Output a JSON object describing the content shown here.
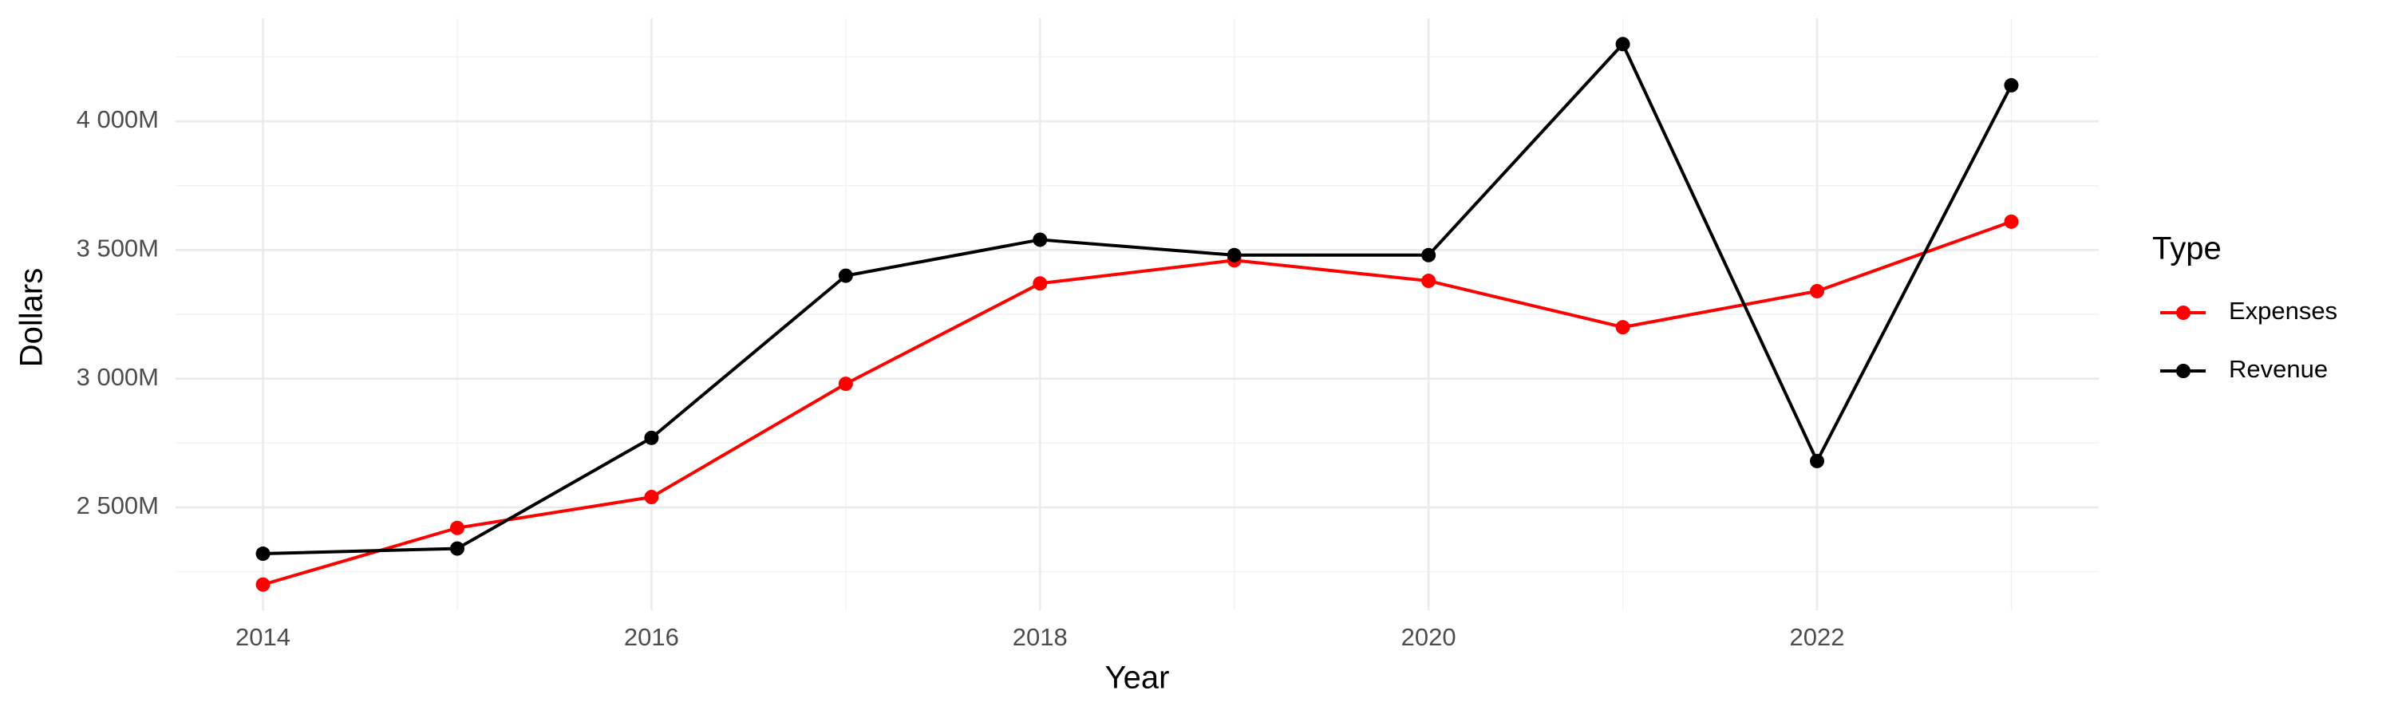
{
  "chart_data": {
    "type": "line",
    "x_label": "Year",
    "y_label": "Dollars",
    "x": [
      2014,
      2015,
      2016,
      2017,
      2018,
      2019,
      2020,
      2021,
      2022,
      2023
    ],
    "series": [
      {
        "name": "Expenses",
        "color": "#ff0000",
        "values": [
          2200,
          2420,
          2540,
          2980,
          3370,
          3460,
          3380,
          3200,
          3340,
          3610
        ]
      },
      {
        "name": "Revenue",
        "color": "#000000",
        "values": [
          2320,
          2340,
          2770,
          3400,
          3540,
          3480,
          3480,
          4300,
          2680,
          4140
        ]
      }
    ],
    "xlim": [
      2013.55,
      2023.45
    ],
    "xticks": [
      2014,
      2016,
      2018,
      2020,
      2022
    ],
    "ylim": [
      2100,
      4400
    ],
    "yticks": [
      {
        "value": 2500,
        "label": "2 500M"
      },
      {
        "value": 3000,
        "label": "3 000M"
      },
      {
        "value": 3500,
        "label": "3 500M"
      },
      {
        "value": 4000,
        "label": "4 000M"
      }
    ],
    "grid": true,
    "legend_title": "Type",
    "legend_position": "right"
  }
}
